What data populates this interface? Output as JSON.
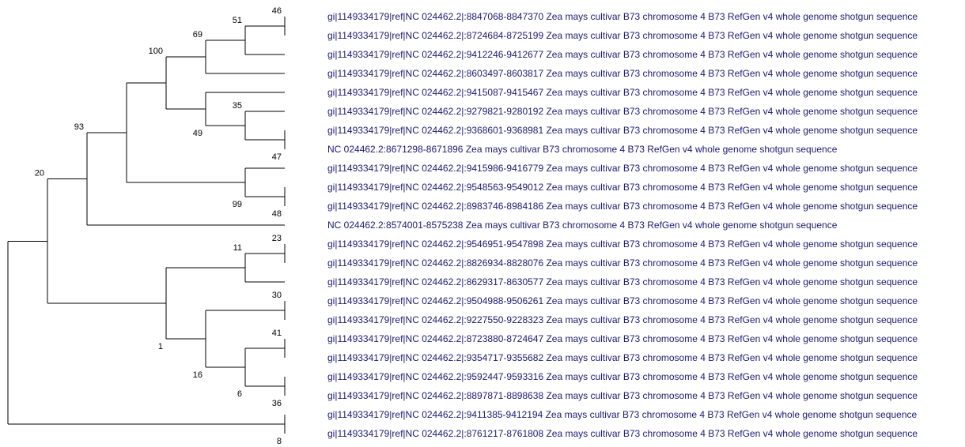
{
  "tree": {
    "type": "phylogenetic-tree",
    "colors": {
      "branch": "#000000",
      "leaf_text": "#1a1a6e",
      "bootstrap_text": "#000000"
    },
    "leaves": [
      "gi|1149334179|ref|NC 024462.2|:8847068-8847370 Zea mays cultivar B73 chromosome 4 B73 RefGen v4 whole genome shotgun sequence",
      "gi|1149334179|ref|NC 024462.2|:8724684-8725199 Zea mays cultivar B73 chromosome 4 B73 RefGen v4 whole genome shotgun sequence",
      "gi|1149334179|ref|NC 024462.2|:9412246-9412677 Zea mays cultivar B73 chromosome 4 B73 RefGen v4 whole genome shotgun sequence",
      "gi|1149334179|ref|NC 024462.2|:8603497-8603817 Zea mays cultivar B73 chromosome 4 B73 RefGen v4 whole genome shotgun sequence",
      "gi|1149334179|ref|NC 024462.2|:9415087-9415467 Zea mays cultivar B73 chromosome 4 B73 RefGen v4 whole genome shotgun sequence",
      "gi|1149334179|ref|NC 024462.2|:9279821-9280192 Zea mays cultivar B73 chromosome 4 B73 RefGen v4 whole genome shotgun sequence",
      "gi|1149334179|ref|NC 024462.2|:9368601-9368981 Zea mays cultivar B73 chromosome 4 B73 RefGen v4 whole genome shotgun sequence",
      "NC 024462.2:8671298-8671896 Zea mays cultivar B73 chromosome 4 B73 RefGen v4 whole genome shotgun sequence",
      "gi|1149334179|ref|NC 024462.2|:9415986-9416779 Zea mays cultivar B73 chromosome 4 B73 RefGen v4 whole genome shotgun sequence",
      "gi|1149334179|ref|NC 024462.2|:9548563-9549012 Zea mays cultivar B73 chromosome 4 B73 RefGen v4 whole genome shotgun sequence",
      "gi|1149334179|ref|NC 024462.2|:8983746-8984186 Zea mays cultivar B73 chromosome 4 B73 RefGen v4 whole genome shotgun sequence",
      "NC 024462.2:8574001-8575238 Zea mays cultivar B73 chromosome 4 B73 RefGen v4 whole genome shotgun sequence",
      "gi|1149334179|ref|NC 024462.2|:9546951-9547898 Zea mays cultivar B73 chromosome 4 B73 RefGen v4 whole genome shotgun sequence",
      "gi|1149334179|ref|NC 024462.2|:8826934-8828076 Zea mays cultivar B73 chromosome 4 B73 RefGen v4 whole genome shotgun sequence",
      "gi|1149334179|ref|NC 024462.2|:8629317-8630577 Zea mays cultivar B73 chromosome 4 B73 RefGen v4 whole genome shotgun sequence",
      "gi|1149334179|ref|NC 024462.2|:9504988-9506261 Zea mays cultivar B73 chromosome 4 B73 RefGen v4 whole genome shotgun sequence",
      "gi|1149334179|ref|NC 024462.2|:9227550-9228323 Zea mays cultivar B73 chromosome 4 B73 RefGen v4 whole genome shotgun sequence",
      "gi|1149334179|ref|NC 024462.2|:8723880-8724647 Zea mays cultivar B73 chromosome 4 B73 RefGen v4 whole genome shotgun sequence",
      "gi|1149334179|ref|NC 024462.2|:9354717-9355682 Zea mays cultivar B73 chromosome 4 B73 RefGen v4 whole genome shotgun sequence",
      "gi|1149334179|ref|NC 024462.2|:9592447-9593316 Zea mays cultivar B73 chromosome 4 B73 RefGen v4 whole genome shotgun sequence",
      "gi|1149334179|ref|NC 024462.2|:8897871-8898638 Zea mays cultivar B73 chromosome 4 B73 RefGen v4 whole genome shotgun sequence",
      "gi|1149334179|ref|NC 024462.2|:9411385-9412194 Zea mays cultivar B73 chromosome 4 B73 RefGen v4 whole genome shotgun sequence",
      "gi|1149334179|ref|NC 024462.2|:8761217-8761808 Zea mays cultivar B73 chromosome 4 B73 RefGen v4 whole genome shotgun sequence"
    ],
    "bootstrap": {
      "n46": "46",
      "n51": "51",
      "n69": "69",
      "n100": "100",
      "n35": "35",
      "n49": "49",
      "n47": "47",
      "n48": "48",
      "n99": "99",
      "n93": "93",
      "n20": "20",
      "n23": "23",
      "n11": "11",
      "n30": "30",
      "n41": "41",
      "n36": "36",
      "n6": "6",
      "n16": "16",
      "n1": "1",
      "n8": "8"
    }
  }
}
